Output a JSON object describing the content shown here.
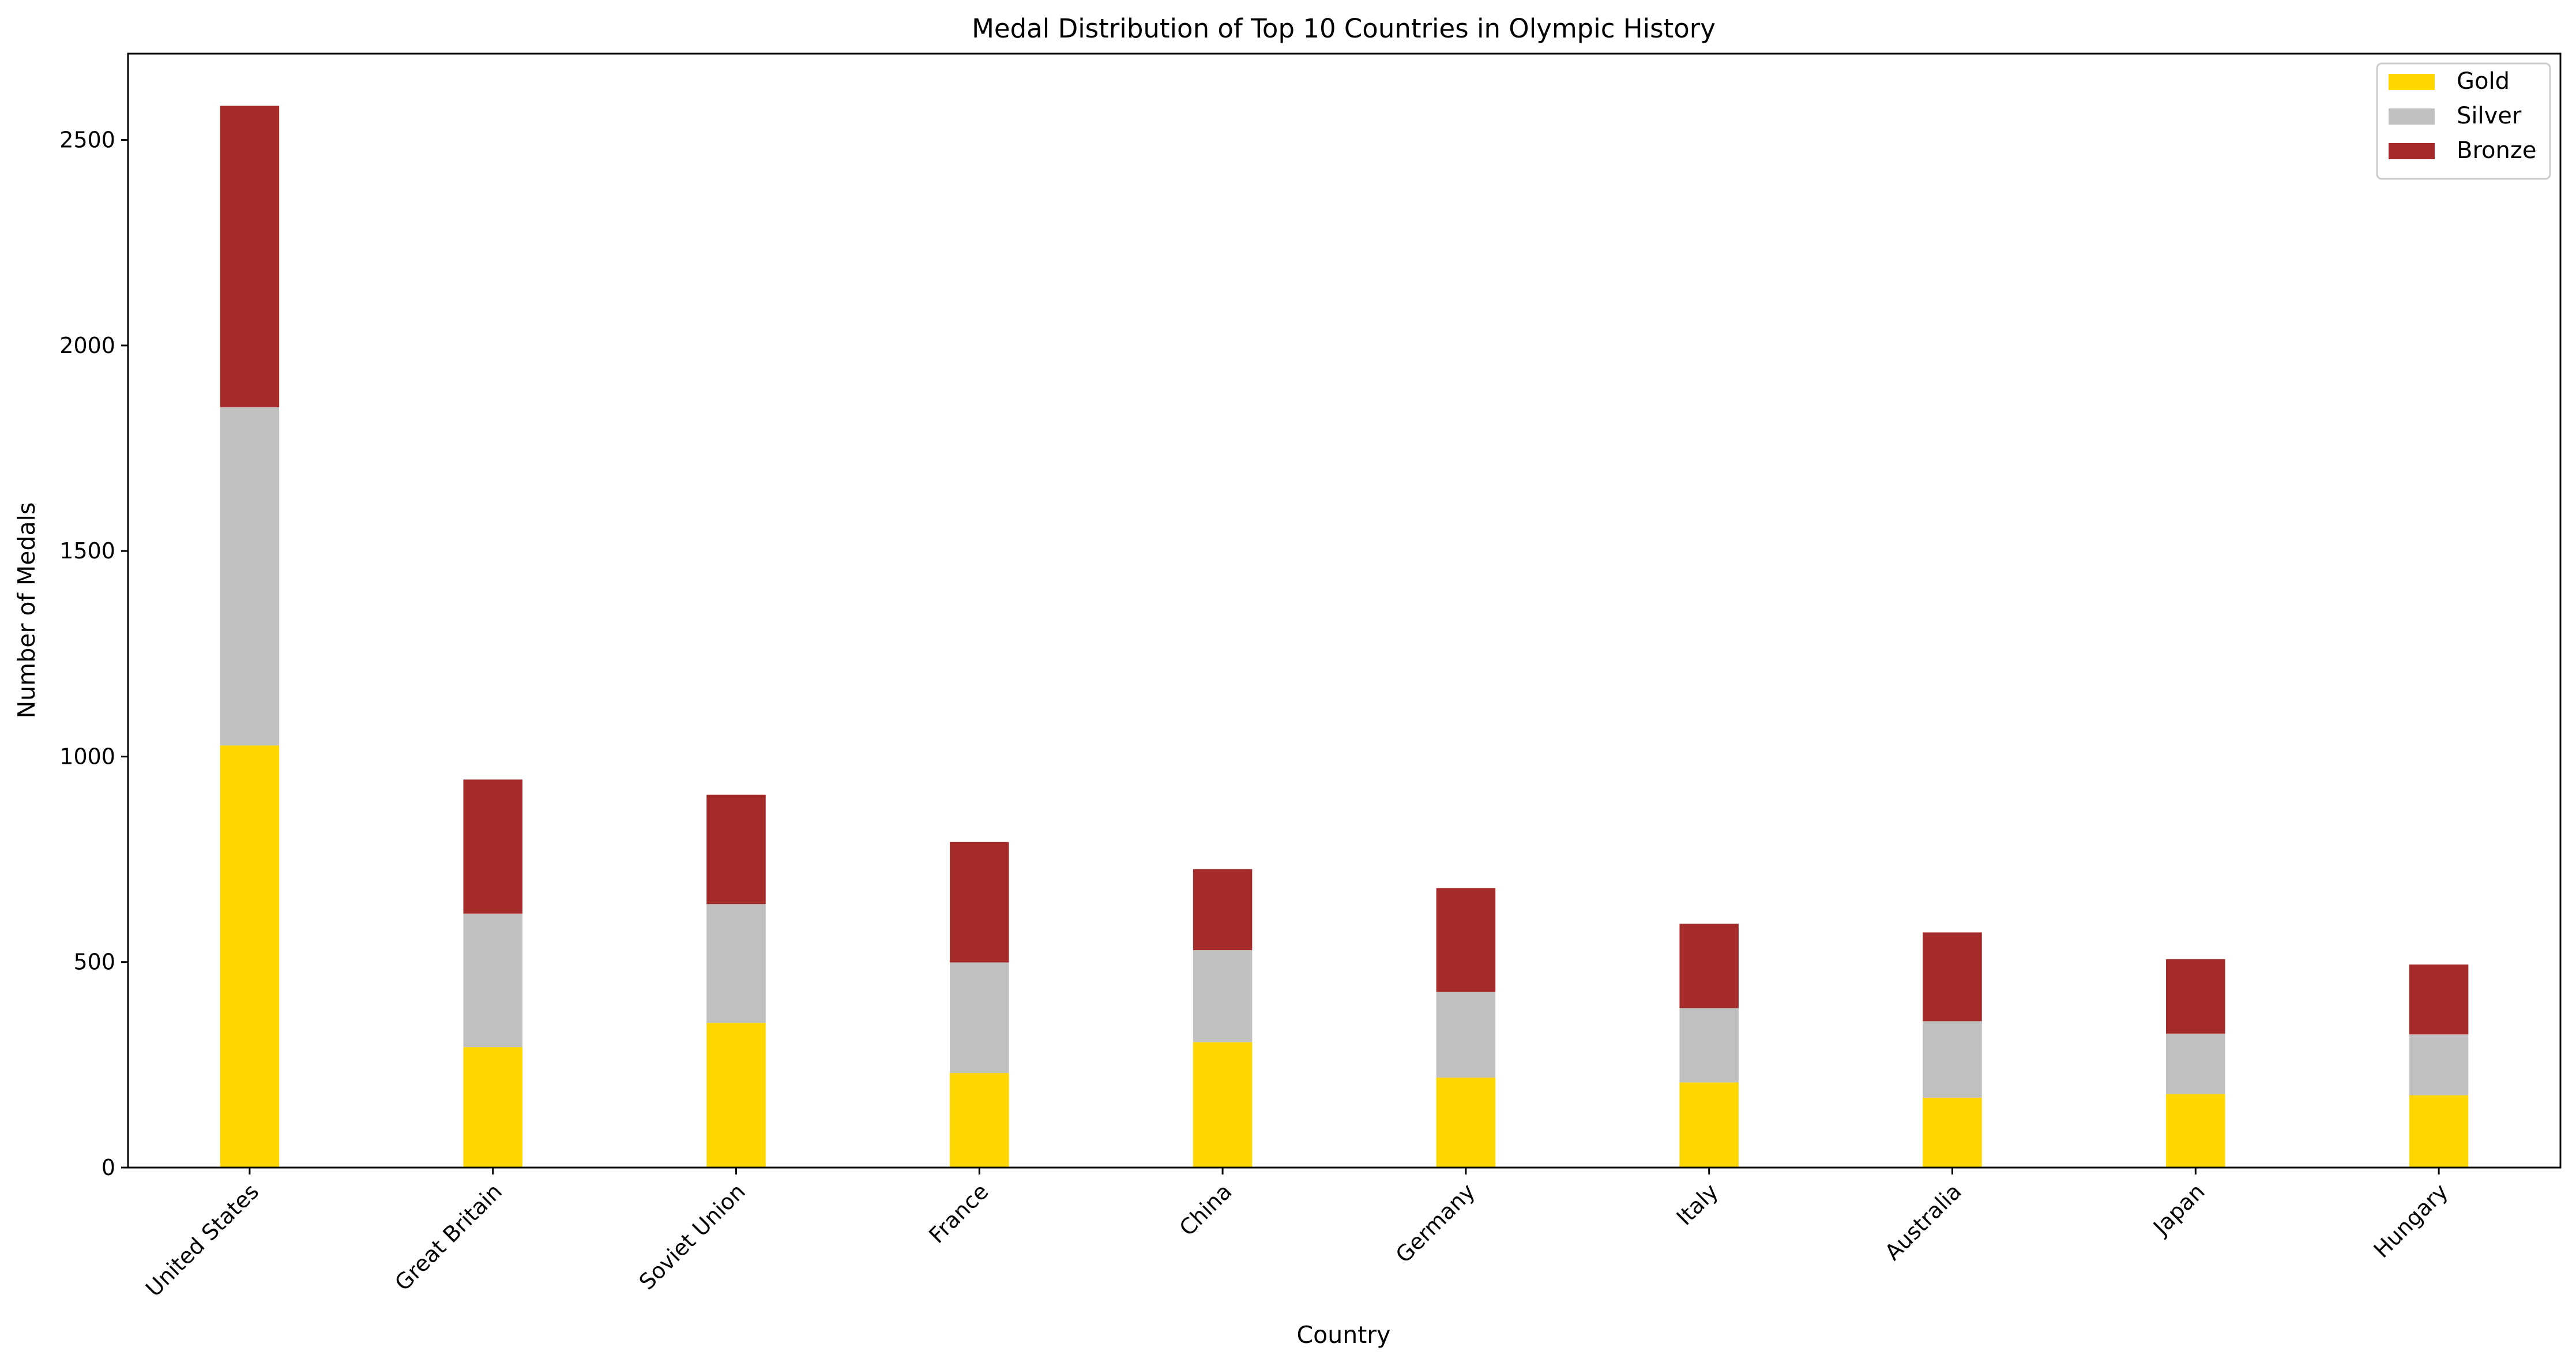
{
  "chart_data": {
    "type": "bar",
    "stacked": true,
    "title": "Medal Distribution of Top 10 Countries in Olympic History",
    "xlabel": "Country",
    "ylabel": "Number of Medals",
    "ylim": [
      0,
      2710
    ],
    "yticks": [
      0,
      500,
      1000,
      1500,
      2000,
      2500
    ],
    "grid": false,
    "legend_position": "top-right",
    "categories": [
      "United States",
      "Great Britain",
      "Soviet Union",
      "France",
      "China",
      "Germany",
      "Italy",
      "Australia",
      "Japan",
      "Hungary"
    ],
    "series": [
      {
        "name": "Gold",
        "color": "#FFD700",
        "values": [
          1027,
          293,
          352,
          230,
          305,
          219,
          207,
          170,
          179,
          176
        ]
      },
      {
        "name": "Silver",
        "color": "#C0C0C0",
        "values": [
          823,
          325,
          289,
          269,
          224,
          208,
          181,
          186,
          147,
          148
        ]
      },
      {
        "name": "Bronze",
        "color": "#A52A2A",
        "values": [
          733,
          326,
          266,
          293,
          197,
          253,
          205,
          216,
          181,
          170
        ]
      }
    ]
  }
}
